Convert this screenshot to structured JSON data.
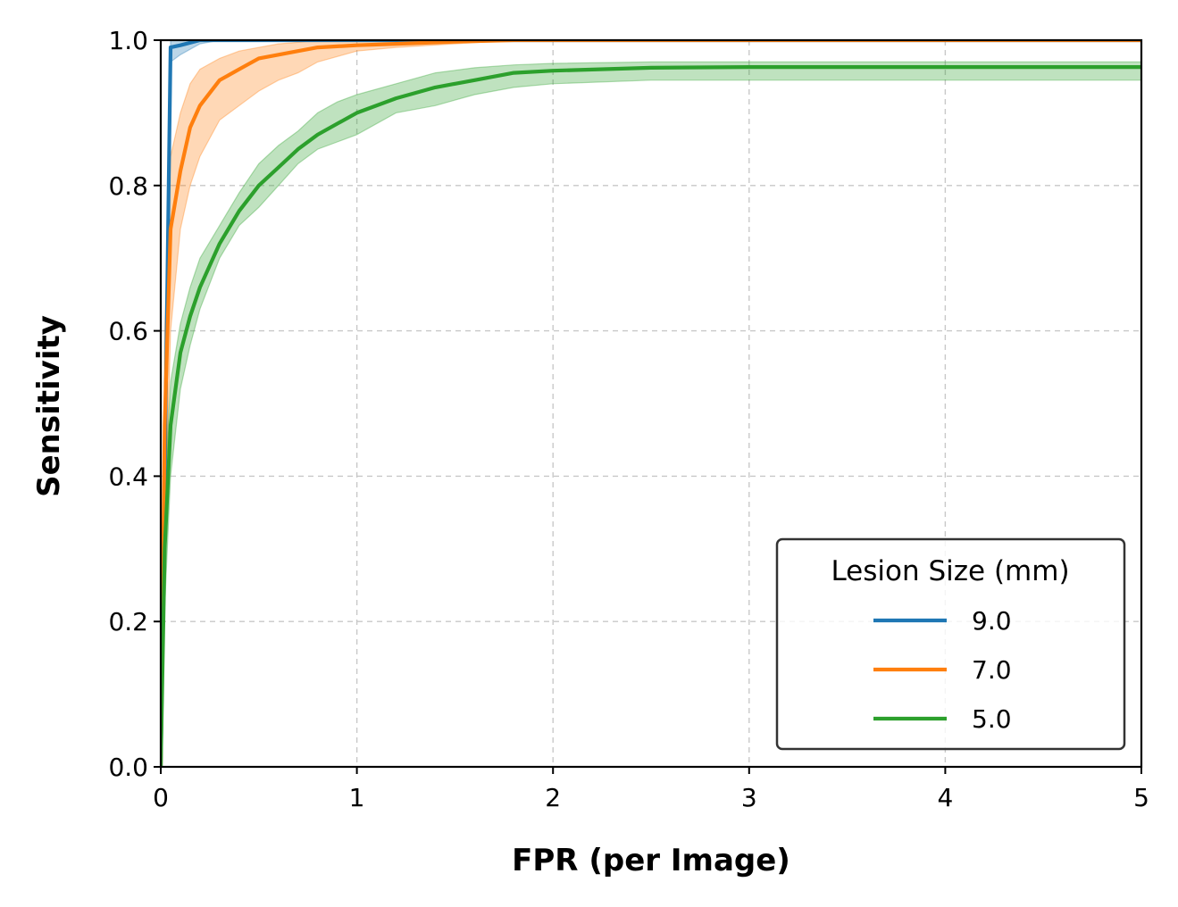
{
  "chart_data": {
    "type": "line",
    "title": "",
    "xlabel": "FPR (per Image)",
    "ylabel": "Sensitivity",
    "xlim": [
      0,
      5
    ],
    "ylim": [
      0,
      1
    ],
    "xticks": [
      "0",
      "1",
      "2",
      "3",
      "4",
      "5"
    ],
    "yticks": [
      "0.0",
      "0.2",
      "0.4",
      "0.6",
      "0.8",
      "1.0"
    ],
    "grid": true,
    "legend": {
      "title": "Lesion Size (mm)",
      "position": "lower-right"
    },
    "series": [
      {
        "name": "9.0",
        "color": "#1f77b4",
        "x": [
          0,
          0.05,
          0.1,
          0.2,
          0.3,
          5
        ],
        "y": [
          0,
          0.99,
          0.993,
          1.0,
          1.0,
          1.0
        ],
        "lower": [
          0,
          0.97,
          0.98,
          0.995,
          1.0,
          1.0
        ],
        "upper": [
          0,
          1.0,
          1.0,
          1.0,
          1.0,
          1.0
        ]
      },
      {
        "name": "7.0",
        "color": "#ff7f0e",
        "x": [
          0,
          0.02,
          0.05,
          0.1,
          0.15,
          0.2,
          0.3,
          0.4,
          0.5,
          0.6,
          0.7,
          0.8,
          1.0,
          1.2,
          1.5,
          1.8,
          2.0,
          5
        ],
        "y": [
          0,
          0.47,
          0.74,
          0.82,
          0.88,
          0.91,
          0.945,
          0.96,
          0.975,
          0.98,
          0.985,
          0.99,
          0.993,
          0.995,
          0.998,
          1.0,
          1.0,
          1.0
        ],
        "lower": [
          0,
          0.3,
          0.6,
          0.74,
          0.8,
          0.84,
          0.89,
          0.91,
          0.93,
          0.945,
          0.955,
          0.97,
          0.985,
          0.99,
          0.995,
          1.0,
          1.0,
          1.0
        ],
        "upper": [
          0,
          0.6,
          0.84,
          0.9,
          0.94,
          0.96,
          0.975,
          0.985,
          0.99,
          0.995,
          0.997,
          1.0,
          1.0,
          1.0,
          1.0,
          1.0,
          1.0,
          1.0
        ]
      },
      {
        "name": "5.0",
        "color": "#2ca02c",
        "x": [
          0,
          0.02,
          0.05,
          0.1,
          0.15,
          0.2,
          0.3,
          0.4,
          0.5,
          0.6,
          0.7,
          0.8,
          0.9,
          1.0,
          1.2,
          1.4,
          1.6,
          1.8,
          2.0,
          2.5,
          3.0,
          5
        ],
        "y": [
          0,
          0.3,
          0.47,
          0.57,
          0.62,
          0.66,
          0.72,
          0.765,
          0.8,
          0.825,
          0.85,
          0.87,
          0.885,
          0.9,
          0.92,
          0.935,
          0.945,
          0.955,
          0.958,
          0.962,
          0.963,
          0.963
        ],
        "lower": [
          0,
          0.22,
          0.4,
          0.52,
          0.58,
          0.63,
          0.7,
          0.745,
          0.77,
          0.8,
          0.83,
          0.85,
          0.86,
          0.87,
          0.9,
          0.91,
          0.925,
          0.935,
          0.94,
          0.945,
          0.945,
          0.945
        ],
        "upper": [
          0,
          0.38,
          0.53,
          0.61,
          0.66,
          0.7,
          0.745,
          0.79,
          0.83,
          0.855,
          0.875,
          0.9,
          0.915,
          0.925,
          0.94,
          0.955,
          0.962,
          0.966,
          0.968,
          0.97,
          0.97,
          0.97
        ]
      }
    ]
  }
}
